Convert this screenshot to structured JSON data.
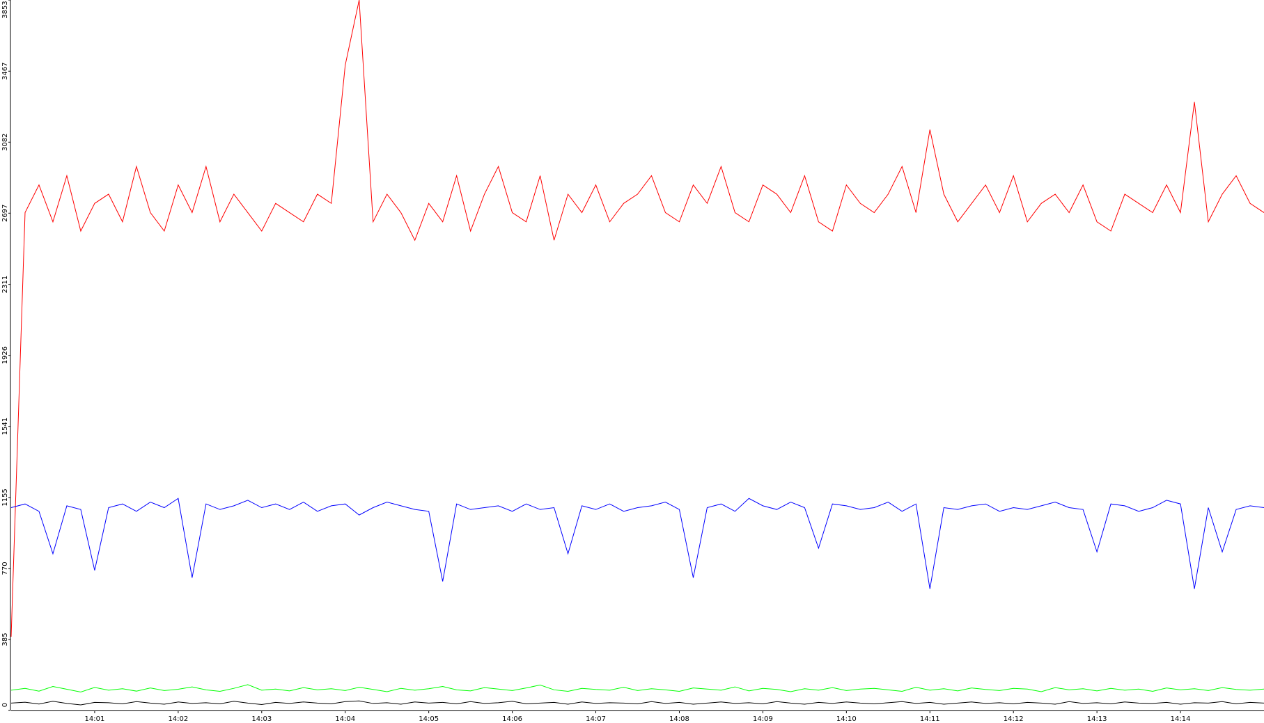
{
  "chart_data": {
    "type": "line",
    "categories": [
      null,
      null,
      null,
      null,
      null,
      null,
      "14:01",
      null,
      null,
      null,
      null,
      null,
      "14:02",
      null,
      null,
      null,
      null,
      null,
      "14:03",
      null,
      null,
      null,
      null,
      null,
      "14:04",
      null,
      null,
      null,
      null,
      null,
      "14:05",
      null,
      null,
      null,
      null,
      null,
      "14:06",
      null,
      null,
      null,
      null,
      null,
      "14:07",
      null,
      null,
      null,
      null,
      null,
      "14:08",
      null,
      null,
      null,
      null,
      null,
      "14:09",
      null,
      null,
      null,
      null,
      null,
      "14:10",
      null,
      null,
      null,
      null,
      null,
      "14:11",
      null,
      null,
      null,
      null,
      null,
      "14:12",
      null,
      null,
      null,
      null,
      null,
      "14:13",
      null,
      null,
      null,
      null,
      null,
      "14:14",
      null,
      null,
      null,
      null,
      null,
      null
    ],
    "ylim": [
      0,
      3853
    ],
    "yticks": [
      0,
      385,
      770,
      1155,
      1541,
      1926,
      2311,
      2697,
      3082,
      3467,
      3853
    ],
    "series": [
      {
        "color": "#ff0000",
        "values": [
          400,
          2700,
          2850,
          2650,
          2900,
          2600,
          2750,
          2800,
          2650,
          2950,
          2700,
          2600,
          2850,
          2700,
          2950,
          2650,
          2800,
          2700,
          2600,
          2750,
          2700,
          2650,
          2800,
          2750,
          3500,
          3853,
          2650,
          2800,
          2700,
          2550,
          2750,
          2650,
          2900,
          2600,
          2800,
          2950,
          2700,
          2650,
          2900,
          2550,
          2800,
          2700,
          2850,
          2650,
          2750,
          2800,
          2900,
          2700,
          2650,
          2850,
          2750,
          2950,
          2700,
          2650,
          2850,
          2800,
          2700,
          2900,
          2650,
          2600,
          2850,
          2750,
          2700,
          2800,
          2950,
          2700,
          3150,
          2800,
          2650,
          2750,
          2850,
          2700,
          2900,
          2650,
          2750,
          2800,
          2700,
          2850,
          2650,
          2600,
          2800,
          2750,
          2700,
          2850,
          2700,
          3300,
          2650,
          2800,
          2900,
          2750,
          2700
        ]
      },
      {
        "color": "#0000ff",
        "values": [
          1100,
          1120,
          1080,
          850,
          1110,
          1090,
          760,
          1100,
          1120,
          1080,
          1130,
          1100,
          1150,
          720,
          1120,
          1090,
          1110,
          1140,
          1100,
          1120,
          1090,
          1130,
          1080,
          1110,
          1120,
          1060,
          1100,
          1130,
          1110,
          1090,
          1080,
          700,
          1120,
          1090,
          1100,
          1110,
          1080,
          1120,
          1090,
          1100,
          850,
          1110,
          1090,
          1120,
          1080,
          1100,
          1110,
          1130,
          1090,
          720,
          1100,
          1120,
          1080,
          1150,
          1110,
          1090,
          1130,
          1100,
          880,
          1120,
          1110,
          1090,
          1100,
          1130,
          1080,
          1120,
          660,
          1100,
          1090,
          1110,
          1120,
          1080,
          1100,
          1090,
          1110,
          1130,
          1100,
          1090,
          860,
          1120,
          1110,
          1080,
          1100,
          1140,
          1120,
          660,
          1100,
          860,
          1090,
          1110,
          1100
        ]
      },
      {
        "color": "#00ff00",
        "values": [
          110,
          120,
          105,
          130,
          115,
          100,
          125,
          110,
          118,
          105,
          122,
          108,
          115,
          128,
          112,
          104,
          120,
          140,
          110,
          116,
          106,
          124,
          112,
          118,
          108,
          126,
          114,
          102,
          120,
          110,
          118,
          130,
          112,
          106,
          124,
          116,
          108,
          122,
          138,
          112,
          104,
          120,
          114,
          110,
          126,
          108,
          118,
          112,
          104,
          122,
          116,
          110,
          128,
          106,
          120,
          114,
          102,
          118,
          110,
          124,
          108,
          116,
          120,
          112,
          104,
          126,
          110,
          118,
          106,
          122,
          114,
          108,
          120,
          116,
          102,
          124,
          112,
          118,
          106,
          120,
          110,
          116,
          104,
          122,
          112,
          118,
          108,
          124,
          114,
          110,
          116
        ]
      },
      {
        "color": "#000000",
        "values": [
          40,
          45,
          35,
          50,
          38,
          30,
          44,
          42,
          36,
          48,
          40,
          34,
          46,
          38,
          42,
          36,
          50,
          40,
          32,
          44,
          38,
          46,
          40,
          36,
          48,
          52,
          38,
          42,
          34,
          46,
          40,
          44,
          36,
          48,
          38,
          42,
          50,
          36,
          40,
          44,
          34,
          46,
          38,
          42,
          40,
          36,
          48,
          38,
          44,
          34,
          40,
          46,
          38,
          42,
          36,
          48,
          40,
          34,
          44,
          38,
          46,
          40,
          36,
          42,
          48,
          38,
          44,
          34,
          40,
          46,
          38,
          42,
          36,
          44,
          40,
          34,
          48,
          38,
          42,
          36,
          46,
          40,
          38,
          44,
          34,
          42,
          40,
          48,
          36,
          44,
          40
        ]
      }
    ]
  }
}
